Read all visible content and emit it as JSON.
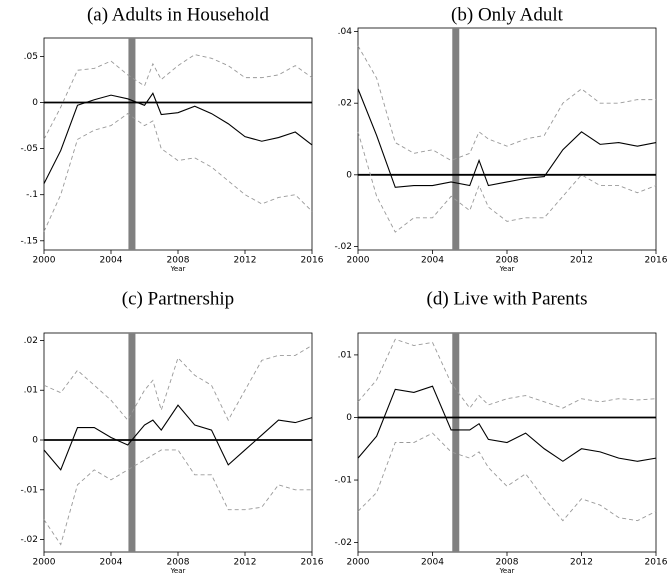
{
  "chart_data": [
    {
      "type": "line",
      "title": "(a) Adults in Household",
      "xlabel": "Year",
      "x": [
        2000,
        2001,
        2002,
        2003,
        2004,
        2005,
        2006,
        2006.5,
        2007,
        2008,
        2009,
        2010,
        2011,
        2012,
        2013,
        2014,
        2015,
        2016
      ],
      "series": [
        {
          "color": "#000000",
          "line_style": "solid",
          "values": [
            -0.088,
            -0.052,
            -0.003,
            0.003,
            0.008,
            0.004,
            -0.003,
            0.01,
            -0.013,
            -0.011,
            -0.004,
            -0.012,
            -0.023,
            -0.037,
            -0.042,
            -0.038,
            -0.032,
            -0.046
          ]
        },
        {
          "color": "#999999",
          "line_style": "dashed",
          "values": [
            -0.04,
            -0.005,
            0.035,
            0.037,
            0.045,
            0.03,
            0.018,
            0.042,
            0.025,
            0.04,
            0.052,
            0.048,
            0.04,
            0.027,
            0.027,
            0.03,
            0.04,
            0.027
          ]
        },
        {
          "color": "#999999",
          "line_style": "dashed",
          "values": [
            -0.14,
            -0.1,
            -0.04,
            -0.03,
            -0.025,
            -0.012,
            -0.025,
            -0.02,
            -0.05,
            -0.063,
            -0.06,
            -0.07,
            -0.085,
            -0.1,
            -0.11,
            -0.103,
            -0.1,
            -0.118
          ]
        }
      ],
      "xlim": [
        2000,
        2016
      ],
      "xticks": [
        2000,
        2004,
        2008,
        2012,
        2016
      ],
      "ylim": [
        -0.16,
        0.07
      ],
      "yticks": [
        {
          "value": 0.05,
          "label": ".05"
        },
        0,
        {
          "value": -0.05,
          "label": "-.05"
        },
        {
          "value": -0.1,
          "label": "-.1"
        },
        {
          "value": -0.15,
          "label": "-.15"
        }
      ],
      "hline": 0,
      "vline": 2005.25,
      "vline_color": "#808080"
    },
    {
      "type": "line",
      "title": "(b) Only Adult",
      "xlabel": "Year",
      "x": [
        2000,
        2001,
        2002,
        2003,
        2004,
        2005,
        2006,
        2006.5,
        2007,
        2008,
        2009,
        2010,
        2011,
        2012,
        2013,
        2014,
        2015,
        2016
      ],
      "series": [
        {
          "color": "#000000",
          "line_style": "solid",
          "values": [
            0.024,
            0.011,
            -0.0035,
            -0.003,
            -0.003,
            -0.002,
            -0.003,
            0.004,
            -0.003,
            -0.002,
            -0.001,
            -0.0005,
            0.007,
            0.012,
            0.0085,
            0.009,
            0.008,
            0.009
          ]
        },
        {
          "color": "#999999",
          "line_style": "dashed",
          "values": [
            0.036,
            0.027,
            0.009,
            0.006,
            0.007,
            0.004,
            0.006,
            0.012,
            0.01,
            0.008,
            0.01,
            0.011,
            0.02,
            0.024,
            0.02,
            0.02,
            0.021,
            0.021
          ]
        },
        {
          "color": "#999999",
          "line_style": "dashed",
          "values": [
            0.012,
            -0.006,
            -0.016,
            -0.012,
            -0.012,
            -0.006,
            -0.01,
            -0.003,
            -0.009,
            -0.013,
            -0.012,
            -0.012,
            -0.006,
            0,
            -0.003,
            -0.003,
            -0.005,
            -0.003
          ]
        }
      ],
      "xlim": [
        2000,
        2016
      ],
      "xticks": [
        2000,
        2004,
        2008,
        2012,
        2016
      ],
      "ylim": [
        -0.021,
        0.041
      ],
      "yticks": [
        {
          "value": 0.04,
          "label": ".04"
        },
        {
          "value": 0.02,
          "label": ".02"
        },
        0,
        {
          "value": -0.02,
          "label": "-.02"
        }
      ],
      "hline": 0,
      "vline": 2005.25,
      "vline_color": "#808080"
    },
    {
      "type": "line",
      "title": "(c) Partnership",
      "xlabel": "Year",
      "x": [
        2000,
        2001,
        2002,
        2003,
        2004,
        2005,
        2006,
        2006.5,
        2007,
        2008,
        2009,
        2010,
        2011,
        2012,
        2013,
        2014,
        2015,
        2016
      ],
      "series": [
        {
          "color": "#000000",
          "line_style": "solid",
          "values": [
            -0.002,
            -0.006,
            0.0025,
            0.0025,
            0.0005,
            -0.001,
            0.003,
            0.004,
            0.002,
            0.007,
            0.003,
            0.002,
            -0.005,
            -0.002,
            0.001,
            0.004,
            0.0035,
            0.0045
          ]
        },
        {
          "color": "#999999",
          "line_style": "dashed",
          "values": [
            0.011,
            0.0095,
            0.014,
            0.011,
            0.008,
            0.004,
            0.01,
            0.012,
            0.006,
            0.0165,
            0.013,
            0.011,
            0.004,
            0.01,
            0.016,
            0.017,
            0.017,
            0.019
          ]
        },
        {
          "color": "#999999",
          "line_style": "dashed",
          "values": [
            -0.016,
            -0.021,
            -0.009,
            -0.006,
            -0.008,
            -0.006,
            -0.004,
            -0.003,
            -0.002,
            -0.002,
            -0.007,
            -0.007,
            -0.014,
            -0.014,
            -0.0135,
            -0.009,
            -0.01,
            -0.01
          ]
        }
      ],
      "xlim": [
        2000,
        2016
      ],
      "xticks": [
        2000,
        2004,
        2008,
        2012,
        2016
      ],
      "ylim": [
        -0.0225,
        0.0215
      ],
      "yticks": [
        {
          "value": 0.02,
          "label": ".02"
        },
        {
          "value": 0.01,
          "label": ".01"
        },
        0,
        {
          "value": -0.01,
          "label": "-.01"
        },
        {
          "value": -0.02,
          "label": "-.02"
        }
      ],
      "hline": 0,
      "vline": 2005.25,
      "vline_color": "#808080"
    },
    {
      "type": "line",
      "title": "(d) Live with Parents",
      "xlabel": "Year",
      "x": [
        2000,
        2001,
        2002,
        2003,
        2004,
        2005,
        2006,
        2006.5,
        2007,
        2008,
        2009,
        2010,
        2011,
        2012,
        2013,
        2014,
        2015,
        2016
      ],
      "series": [
        {
          "color": "#000000",
          "line_style": "solid",
          "values": [
            -0.0065,
            -0.003,
            0.0045,
            0.004,
            0.005,
            -0.002,
            -0.002,
            -0.001,
            -0.0035,
            -0.004,
            -0.0025,
            -0.005,
            -0.007,
            -0.005,
            -0.0055,
            -0.0065,
            -0.007,
            -0.0065
          ]
        },
        {
          "color": "#999999",
          "line_style": "dashed",
          "values": [
            0.0025,
            0.006,
            0.0125,
            0.0115,
            0.012,
            0.0055,
            0.0015,
            0.0035,
            0.002,
            0.003,
            0.0035,
            0.0025,
            0.0015,
            0.003,
            0.0025,
            0.003,
            0.0028,
            0.003
          ]
        },
        {
          "color": "#999999",
          "line_style": "dashed",
          "values": [
            -0.015,
            -0.012,
            -0.004,
            -0.004,
            -0.0025,
            -0.0055,
            -0.0065,
            -0.0055,
            -0.008,
            -0.011,
            -0.009,
            -0.013,
            -0.0165,
            -0.013,
            -0.014,
            -0.016,
            -0.0165,
            -0.015
          ]
        }
      ],
      "xlim": [
        2000,
        2016
      ],
      "xticks": [
        2000,
        2004,
        2008,
        2012,
        2016
      ],
      "ylim": [
        -0.0215,
        0.0135
      ],
      "yticks": [
        {
          "value": 0.01,
          "label": ".01"
        },
        0,
        {
          "value": -0.01,
          "label": "-.01"
        },
        {
          "value": -0.02,
          "label": "-.02"
        }
      ],
      "hline": 0,
      "vline": 2005.25,
      "vline_color": "#808080"
    }
  ]
}
